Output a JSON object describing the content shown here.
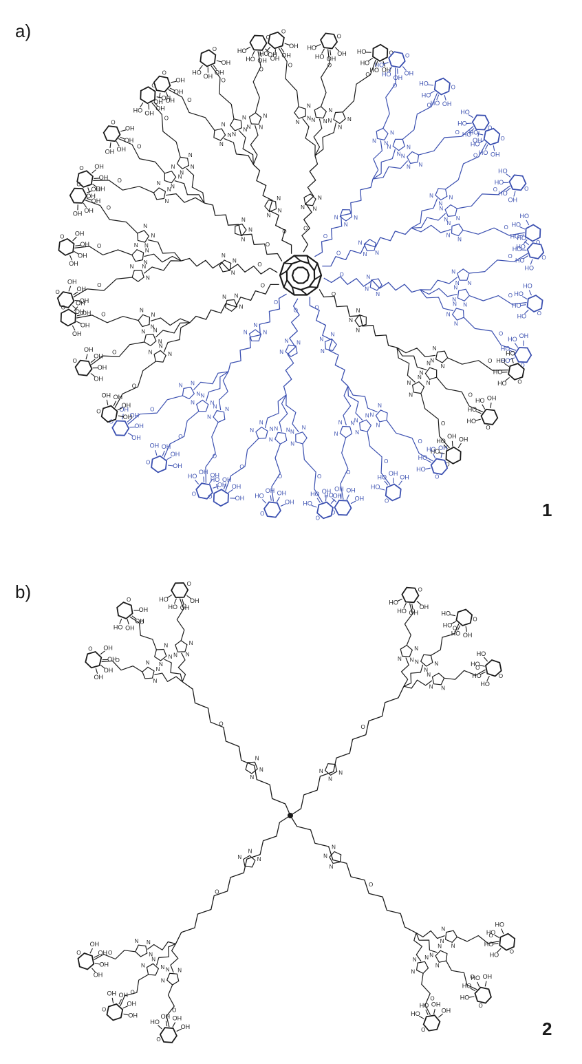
{
  "panels": [
    {
      "label": "a)",
      "compound_number": "1"
    },
    {
      "label": "b)",
      "compound_number": "2"
    }
  ],
  "atom_labels": {
    "hydroxyl": "OH",
    "hydroxyl_left": "HO",
    "oxygen": "O",
    "nitrogen": "N"
  },
  "colors": {
    "black_arms": "#1a1a1a",
    "blue_arms": "#3a4fb0",
    "core": "#1a1a1a",
    "background": "#ffffff"
  }
}
